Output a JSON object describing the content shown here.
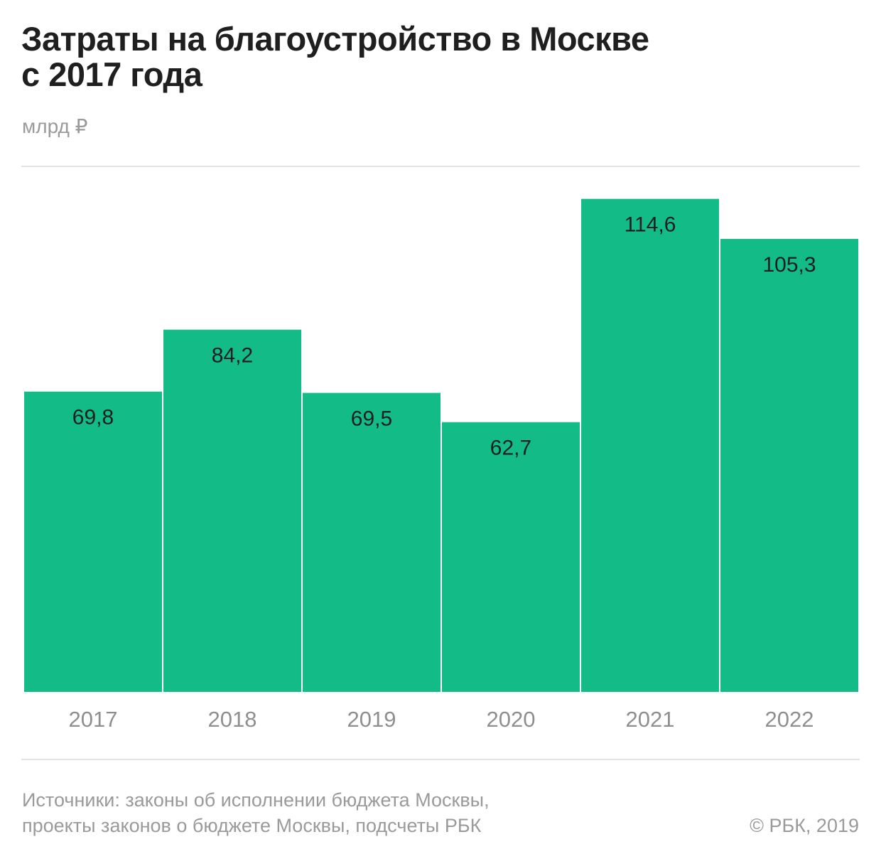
{
  "chart_data": {
    "type": "bar",
    "title": "Затраты на благоустройство в Москве с 2017 года",
    "title_lines": [
      "Затраты на благоустройство в Москве",
      "с 2017 года"
    ],
    "unit": "млрд ₽",
    "categories": [
      "2017",
      "2018",
      "2019",
      "2020",
      "2021",
      "2022"
    ],
    "values": [
      69.8,
      84.2,
      69.5,
      62.7,
      114.6,
      105.3
    ],
    "value_labels": [
      "69,8",
      "84,2",
      "69,5",
      "62,7",
      "114,6",
      "105,3"
    ],
    "xlabel": "",
    "ylabel": "",
    "ylim": [
      0,
      125
    ],
    "grid": false,
    "legend": "none",
    "bar_color": "#13bb86"
  },
  "source": {
    "lines": [
      "Источники: законы об исполнении бюджета Москвы,",
      "проекты законов о бюджете Москвы, подсчеты РБК"
    ]
  },
  "copyright": "© РБК, 2019"
}
